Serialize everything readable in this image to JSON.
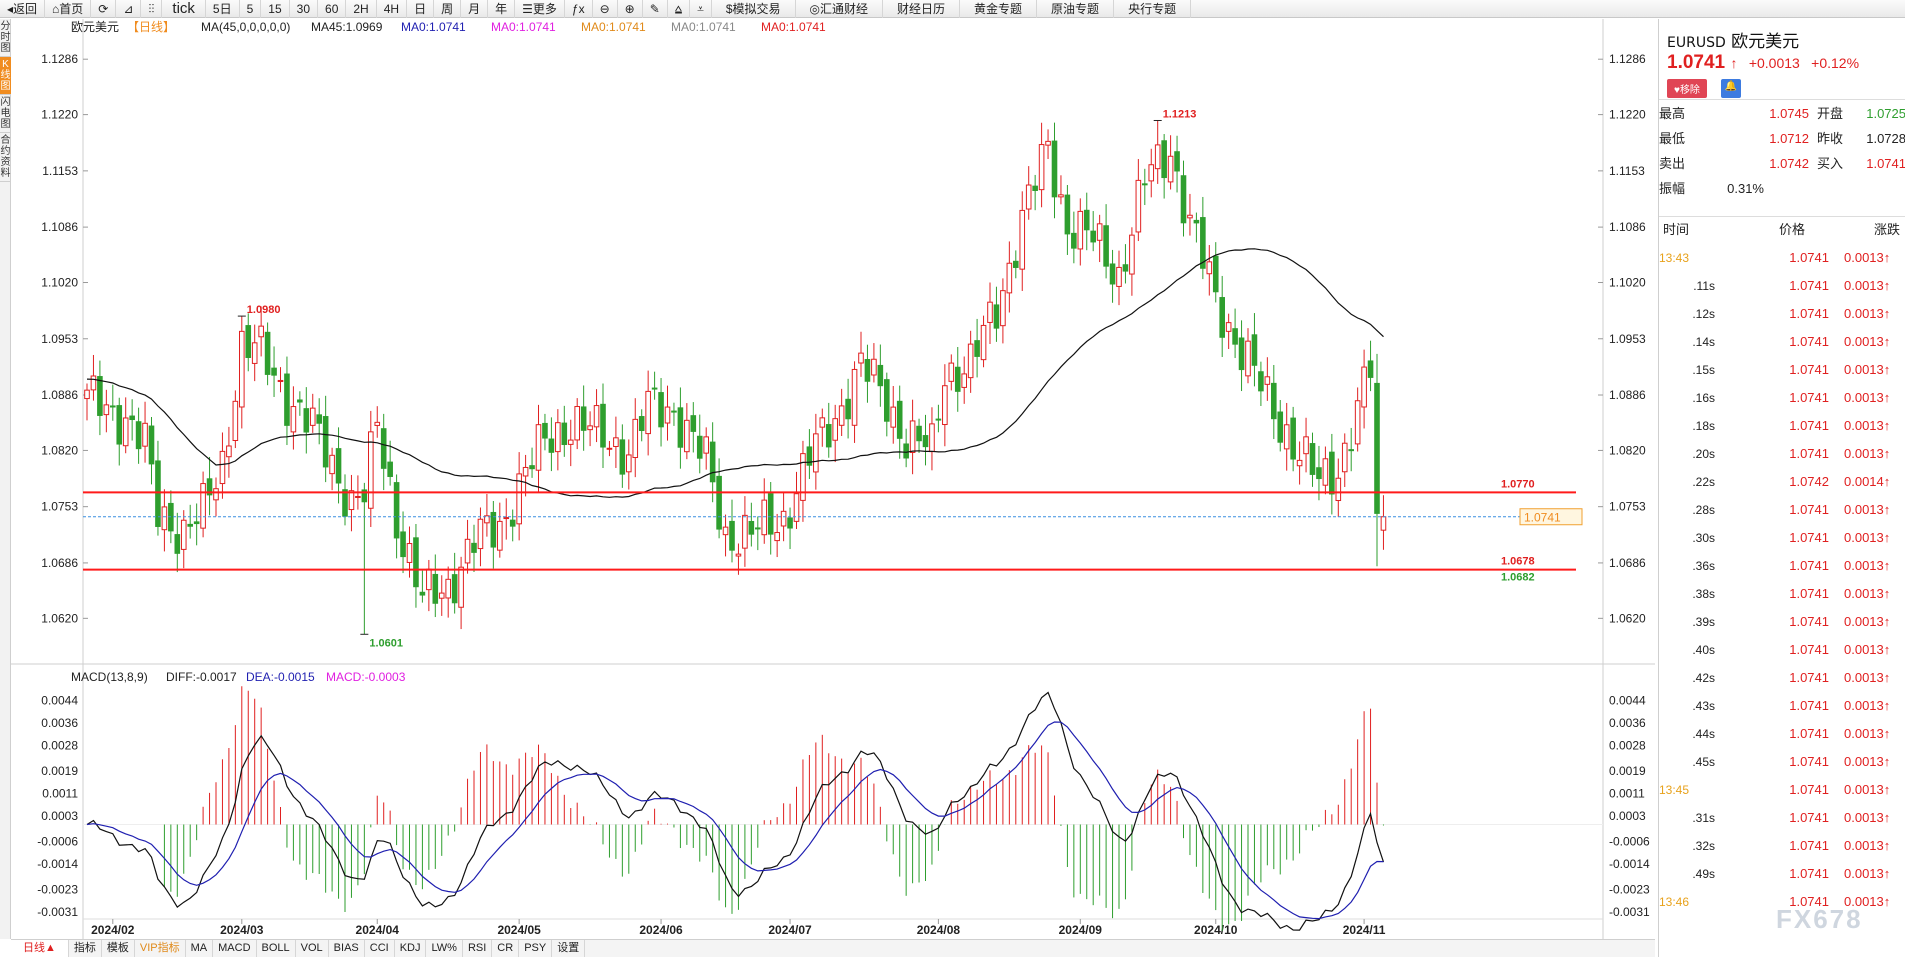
{
  "toolbar": {
    "items": [
      "◂返回",
      "⌂首页",
      "⟳",
      "⊿",
      "⫶⫶",
      "tick",
      "5日",
      "5",
      "15",
      "30",
      "60",
      "2H",
      "4H",
      "日",
      "周",
      "月",
      "年",
      "☰更多",
      "ƒx",
      "⊖",
      "⊕",
      "✎",
      "⩠",
      "⩡",
      "$模拟交易",
      "◎汇通财经",
      "财经日历",
      "黄金专题",
      "原油专题",
      "央行专题"
    ]
  },
  "left_tabs": [
    "分时图",
    "K线图",
    "闪电图",
    "合约资料"
  ],
  "chart": {
    "symbol_label": "欧元美元",
    "period_label": "【日线】",
    "legend": [
      {
        "text": "MA(45,0,0,0,0,0)",
        "color": "#222222"
      },
      {
        "text": "MA45:1.0969",
        "color": "#222222"
      },
      {
        "text": "MA0:1.0741",
        "color": "#1f1fb0"
      },
      {
        "text": "MA0:1.0741",
        "color": "#e020e0"
      },
      {
        "text": "MA0:1.0741",
        "color": "#e08a1a"
      },
      {
        "text": "MA0:1.0741",
        "color": "#888888"
      },
      {
        "text": "MA0:1.0741",
        "color": "#e02020"
      }
    ],
    "price_ticks": [
      "1.1286",
      "1.1220",
      "1.1153",
      "1.1086",
      "1.1020",
      "1.0953",
      "1.0886",
      "1.0820",
      "1.0753",
      "1.0686",
      "1.0620"
    ],
    "price_range": [
      1.0593,
      1.1291
    ],
    "date_ticks": [
      {
        "label": "2024/02",
        "bar": 4
      },
      {
        "label": "2024/03",
        "bar": 24
      },
      {
        "label": "2024/04",
        "bar": 45
      },
      {
        "label": "2024/05",
        "bar": 67
      },
      {
        "label": "2024/06",
        "bar": 89
      },
      {
        "label": "2024/07",
        "bar": 109
      },
      {
        "label": "2024/08",
        "bar": 132
      },
      {
        "label": "2024/09",
        "bar": 154
      },
      {
        "label": "2024/10",
        "bar": 175
      },
      {
        "label": "2024/11",
        "bar": 198
      }
    ],
    "annotations": [
      {
        "text": "1.0980",
        "bar": 24,
        "value": 1.098,
        "kind": "high"
      },
      {
        "text": "1.0601",
        "bar": 43,
        "value": 1.0601,
        "kind": "low"
      },
      {
        "text": "1.1213",
        "bar": 166,
        "value": 1.1213,
        "kind": "high"
      },
      {
        "text": "1.0770",
        "value": 1.077,
        "kind": "level"
      },
      {
        "text": "1.0678",
        "value": 1.0678,
        "kind": "level"
      },
      {
        "text": "1.0682",
        "value": 1.0682,
        "kind": "low"
      }
    ],
    "last_price_tag": "1.0741",
    "horizontal_lines": [
      1.077,
      1.0678
    ],
    "current_price": 1.0741
  },
  "chart_data": [
    {
      "type": "candlestick",
      "title": "欧元美元 【日线】",
      "ylim": [
        1.0593,
        1.1291
      ],
      "bars": 202,
      "anchors": [
        [
          0,
          1.088
        ],
        [
          6,
          1.086
        ],
        [
          9,
          1.0825
        ],
        [
          11,
          1.0745
        ],
        [
          15,
          1.0725
        ],
        [
          18,
          1.0745
        ],
        [
          21,
          1.0805
        ],
        [
          24,
          1.0945
        ],
        [
          27,
          1.0935
        ],
        [
          31,
          1.0885
        ],
        [
          35,
          1.0845
        ],
        [
          38,
          1.0805
        ],
        [
          41,
          1.076
        ],
        [
          43,
          1.0765
        ],
        [
          45,
          1.085
        ],
        [
          48,
          1.074
        ],
        [
          52,
          1.064
        ],
        [
          56,
          1.066
        ],
        [
          60,
          1.071
        ],
        [
          64,
          1.073
        ],
        [
          67,
          1.078
        ],
        [
          71,
          1.083
        ],
        [
          75,
          1.0855
        ],
        [
          79,
          1.084
        ],
        [
          84,
          1.082
        ],
        [
          87,
          1.087
        ],
        [
          91,
          1.087
        ],
        [
          96,
          1.0805
        ],
        [
          99,
          1.072
        ],
        [
          103,
          1.072
        ],
        [
          108,
          1.074
        ],
        [
          112,
          1.081
        ],
        [
          116,
          1.086
        ],
        [
          120,
          1.092
        ],
        [
          124,
          1.088
        ],
        [
          127,
          1.0835
        ],
        [
          131,
          1.082
        ],
        [
          133,
          1.0915
        ],
        [
          137,
          1.092
        ],
        [
          141,
          1.099
        ],
        [
          145,
          1.1095
        ],
        [
          149,
          1.118
        ],
        [
          152,
          1.109
        ],
        [
          156,
          1.107
        ],
        [
          160,
          1.103
        ],
        [
          164,
          1.114
        ],
        [
          168,
          1.118
        ],
        [
          171,
          1.109
        ],
        [
          175,
          1.1
        ],
        [
          179,
          1.094
        ],
        [
          183,
          1.088
        ],
        [
          187,
          1.083
        ],
        [
          191,
          1.078
        ],
        [
          194,
          1.08
        ],
        [
          197,
          1.087
        ],
        [
          199,
          1.0915
        ],
        [
          200,
          1.0745
        ],
        [
          201,
          1.0741
        ]
      ],
      "series": [
        {
          "name": "MA45",
          "values_at_end": 1.0969
        }
      ]
    },
    {
      "type": "bar",
      "title": "MACD(13,8,9)",
      "legend": [
        {
          "text": "MACD(13,8,9)",
          "color": "#222222"
        },
        {
          "text": "DIFF:-0.0017",
          "color": "#222222"
        },
        {
          "text": "DEA:-0.0015",
          "color": "#1f1fb0"
        },
        {
          "text": "MACD:-0.0003",
          "color": "#e020e0"
        }
      ],
      "y_ticks": [
        "0.0044",
        "0.0036",
        "0.0028",
        "0.0019",
        "0.0011",
        "0.0003",
        "-0.0006",
        "-0.0014",
        "-0.0023",
        "-0.0031"
      ],
      "ylim": [
        -0.0036,
        0.0047
      ]
    }
  ],
  "bottom_tabs": [
    "日线▲",
    "指标",
    "模板",
    "VIP指标",
    "MA",
    "MACD",
    "BOLL",
    "VOL",
    "BIAS",
    "CCI",
    "KDJ",
    "LW%",
    "RSI",
    "CR",
    "PSY",
    "设置"
  ],
  "quote_panel": {
    "code": "EURUSD",
    "name": "欧元美元",
    "price": "1.0741",
    "arrow": "↑",
    "change": "+0.0013",
    "change_pct": "+0.12%",
    "remove_label": "♥移除",
    "bell_label": "🔔",
    "rows": [
      {
        "l1": "最高",
        "v1": "1.0745",
        "l2": "开盘",
        "v2": "1.0725",
        "v2c": "green"
      },
      {
        "l1": "最低",
        "v1": "1.0712",
        "l2": "昨收",
        "v2": "1.0728",
        "v2c": "black"
      },
      {
        "l1": "卖出",
        "v1": "1.0742",
        "l2": "买入",
        "v2": "1.0741",
        "v2c": "red"
      }
    ],
    "amplitude_label": "振幅",
    "amplitude": "0.31%",
    "tick_header": {
      "time": "时间",
      "price": "价格",
      "change": "涨跌"
    },
    "ticks": [
      {
        "t": "13:43",
        "o": true,
        "p": "1.0741",
        "c": "0.0013↑"
      },
      {
        "t": ".11s",
        "p": "1.0741",
        "c": "0.0013↑"
      },
      {
        "t": ".12s",
        "p": "1.0741",
        "c": "0.0013↑"
      },
      {
        "t": ".14s",
        "p": "1.0741",
        "c": "0.0013↑"
      },
      {
        "t": ".15s",
        "p": "1.0741",
        "c": "0.0013↑"
      },
      {
        "t": ".16s",
        "p": "1.0741",
        "c": "0.0013↑"
      },
      {
        "t": ".18s",
        "p": "1.0741",
        "c": "0.0013↑"
      },
      {
        "t": ".20s",
        "p": "1.0741",
        "c": "0.0013↑"
      },
      {
        "t": ".22s",
        "p": "1.0742",
        "c": "0.0014↑"
      },
      {
        "t": ".28s",
        "p": "1.0741",
        "c": "0.0013↑"
      },
      {
        "t": ".30s",
        "p": "1.0741",
        "c": "0.0013↑"
      },
      {
        "t": ".36s",
        "p": "1.0741",
        "c": "0.0013↑"
      },
      {
        "t": ".38s",
        "p": "1.0741",
        "c": "0.0013↑"
      },
      {
        "t": ".39s",
        "p": "1.0741",
        "c": "0.0013↑"
      },
      {
        "t": ".40s",
        "p": "1.0741",
        "c": "0.0013↑"
      },
      {
        "t": ".42s",
        "p": "1.0741",
        "c": "0.0013↑"
      },
      {
        "t": ".43s",
        "p": "1.0741",
        "c": "0.0013↑"
      },
      {
        "t": ".44s",
        "p": "1.0741",
        "c": "0.0013↑"
      },
      {
        "t": ".45s",
        "p": "1.0741",
        "c": "0.0013↑"
      },
      {
        "t": "13:45",
        "o": true,
        "p": "1.0741",
        "c": "0.0013↑"
      },
      {
        "t": ".31s",
        "p": "1.0741",
        "c": "0.0013↑"
      },
      {
        "t": ".32s",
        "p": "1.0741",
        "c": "0.0013↑"
      },
      {
        "t": ".49s",
        "p": "1.0741",
        "c": "0.0013↑"
      },
      {
        "t": "13:46",
        "o": true,
        "p": "1.0741",
        "c": "0.0013↑"
      }
    ]
  },
  "watermark": "FX678",
  "colors": {
    "up": "#e02020",
    "down": "#2e9e2e",
    "ma": "#111111",
    "dea": "#1f1fb0",
    "accent": "#f08c1f"
  }
}
